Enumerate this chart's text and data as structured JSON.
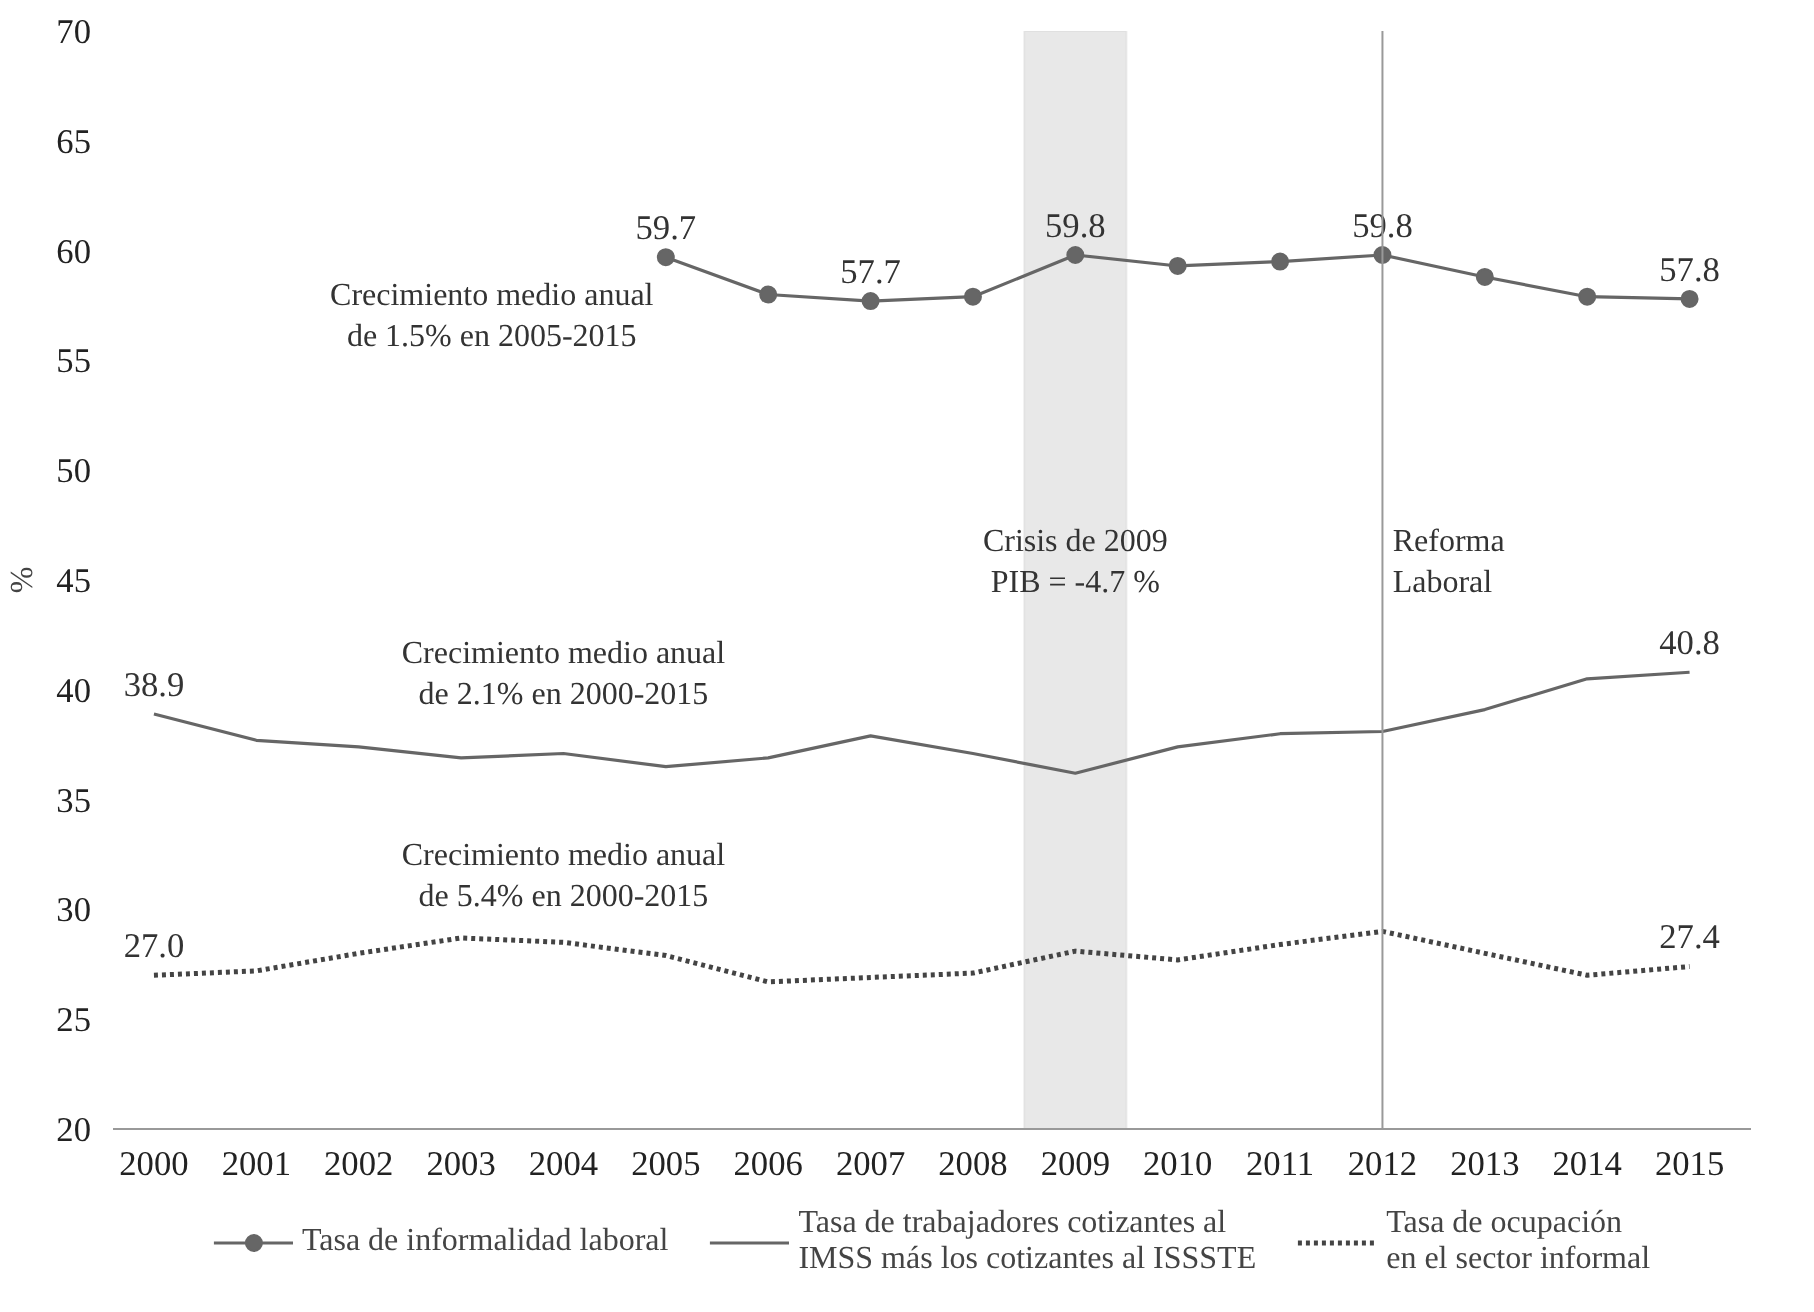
{
  "chart_data": {
    "type": "line",
    "ylabel": "%",
    "x": [
      2000,
      2001,
      2002,
      2003,
      2004,
      2005,
      2006,
      2007,
      2008,
      2009,
      2010,
      2011,
      2012,
      2013,
      2014,
      2015
    ],
    "xlim": [
      1999.6,
      2015.6
    ],
    "xticks": [
      2000,
      2001,
      2002,
      2003,
      2004,
      2005,
      2006,
      2007,
      2008,
      2009,
      2010,
      2011,
      2012,
      2013,
      2014,
      2015
    ],
    "ylim": [
      20,
      70
    ],
    "yticks": [
      20,
      25,
      30,
      35,
      40,
      45,
      50,
      55,
      60,
      65,
      70
    ],
    "series": [
      {
        "name": "Tasa de informalidad laboral",
        "color": "#666666",
        "marker": "circle",
        "line_style": "solid",
        "values": [
          null,
          null,
          null,
          null,
          null,
          59.7,
          58.0,
          57.7,
          57.9,
          59.8,
          59.3,
          59.5,
          59.8,
          58.8,
          57.9,
          57.8
        ],
        "value_labels": [
          null,
          null,
          null,
          null,
          null,
          "59.7",
          null,
          "57.7",
          null,
          "59.8",
          null,
          null,
          "59.8",
          null,
          null,
          "57.8"
        ]
      },
      {
        "name": "Tasa de trabajadores cotizantes al\nIMSS más los cotizantes al ISSSTE",
        "color": "#666666",
        "marker": "none",
        "line_style": "solid",
        "values": [
          38.9,
          37.7,
          37.4,
          36.9,
          37.1,
          36.5,
          36.9,
          37.9,
          37.1,
          36.2,
          37.4,
          38.0,
          38.1,
          39.1,
          40.5,
          40.8
        ],
        "value_labels": [
          "38.9",
          null,
          null,
          null,
          null,
          null,
          null,
          null,
          null,
          null,
          null,
          null,
          null,
          null,
          null,
          "40.8"
        ]
      },
      {
        "name": "Tasa de ocupación\nen el sector informal",
        "color": "#444444",
        "marker": "none",
        "line_style": "dotted",
        "values": [
          27.0,
          27.2,
          28.0,
          28.7,
          28.5,
          27.9,
          26.7,
          26.9,
          27.1,
          28.1,
          27.7,
          28.4,
          29.0,
          28.0,
          27.0,
          27.4
        ],
        "value_labels": [
          "27.0",
          null,
          null,
          null,
          null,
          null,
          null,
          null,
          null,
          null,
          null,
          null,
          null,
          null,
          null,
          "27.4"
        ]
      }
    ],
    "bands": [
      {
        "axis": "x",
        "from": 2008.5,
        "to": 2009.5,
        "label": "Crisis de 2009\nPIB = -4.7 %",
        "color": "#e8e8e8"
      }
    ],
    "ref_lines": [
      {
        "axis": "x",
        "value": 2012,
        "label": "Reforma\nLaboral",
        "color": "#999999"
      }
    ],
    "annotations": [
      "Crecimiento medio anual\nde 1.5% en 2005-2015",
      "Crecimiento medio anual\nde 2.1% en 2000-2015",
      "Crecimiento medio anual\nde 5.4% en 2000-2015"
    ],
    "grid": false,
    "legend": "bottom"
  }
}
